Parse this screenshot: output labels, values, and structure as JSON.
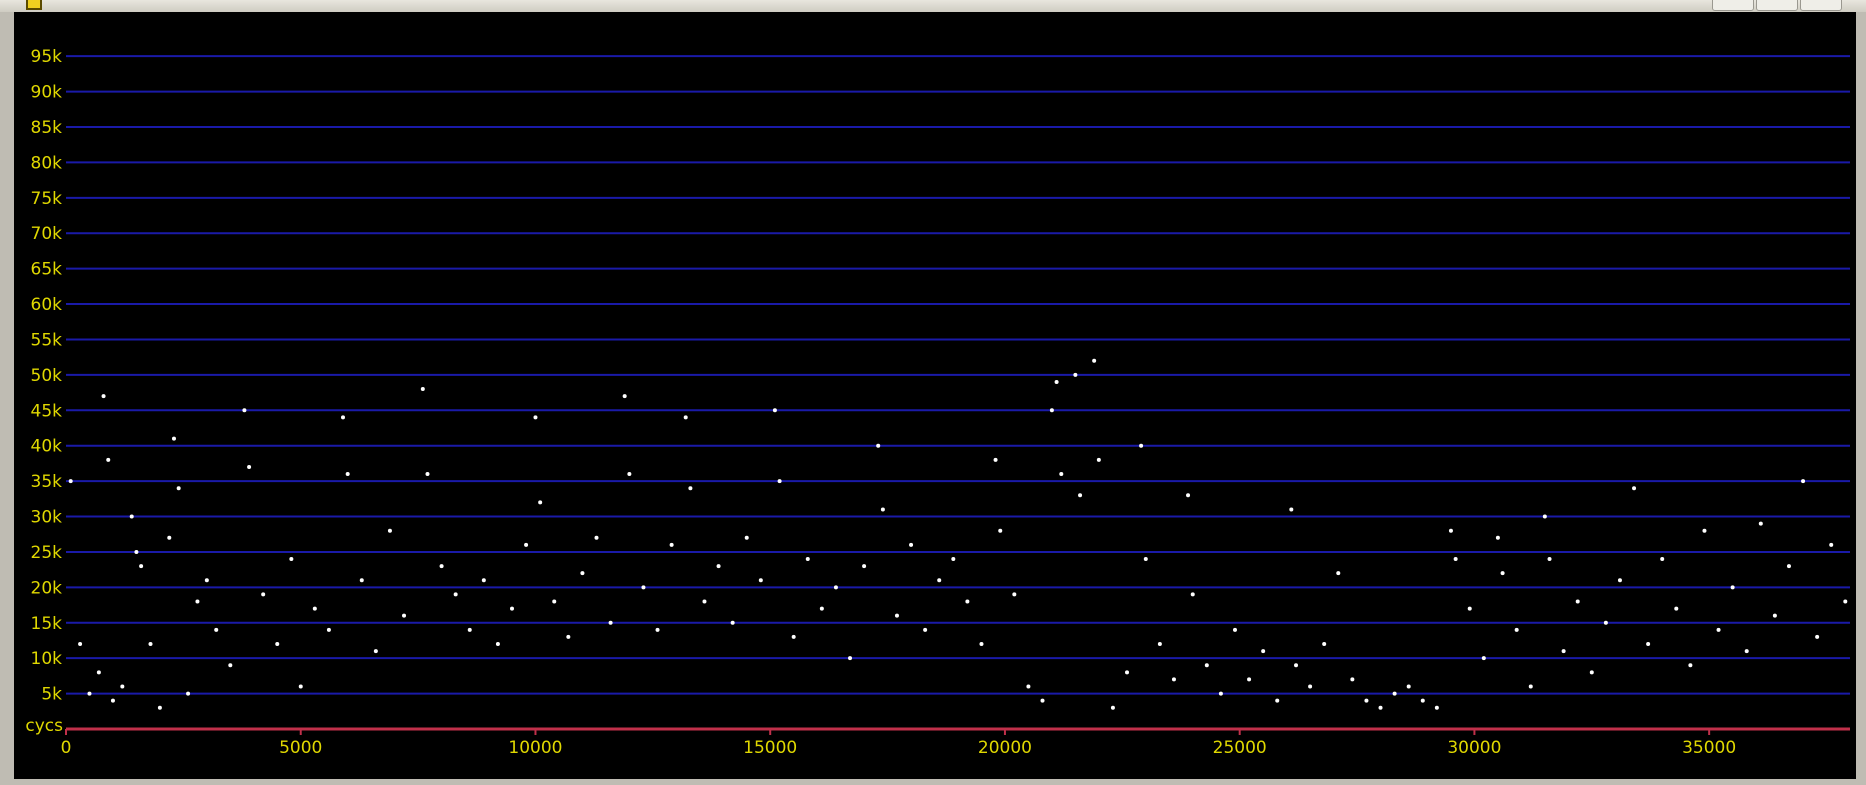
{
  "window": {
    "title": "",
    "colors": {
      "background": "#000000",
      "grid": "#1a1aa8",
      "axis": "#c0304a",
      "tick_text": "#e0d800",
      "points": "#ffffff"
    }
  },
  "chart_data": {
    "type": "scatter",
    "title": "",
    "xlabel": "",
    "ylabel": "cycs",
    "xlim": [
      0,
      38000
    ],
    "ylim": [
      0,
      97000
    ],
    "grid": true,
    "legend": "none",
    "x_ticks": [
      0,
      5000,
      10000,
      15000,
      20000,
      25000,
      30000,
      35000
    ],
    "x_tick_labels": [
      "0",
      "5000",
      "10000",
      "15000",
      "20000",
      "25000",
      "30000",
      "35000"
    ],
    "y_ticks": [
      5000,
      10000,
      15000,
      20000,
      25000,
      30000,
      35000,
      40000,
      45000,
      50000,
      55000,
      60000,
      65000,
      70000,
      75000,
      80000,
      85000,
      90000,
      95000
    ],
    "y_tick_labels": [
      "5k",
      "10k",
      "15k",
      "20k",
      "25k",
      "30k",
      "35k",
      "40k",
      "45k",
      "50k",
      "55k",
      "60k",
      "65k",
      "70k",
      "75k",
      "80k",
      "85k",
      "90k",
      "95k"
    ],
    "series": [
      {
        "values_note": "",
        "points": [
          [
            100,
            35000
          ],
          [
            300,
            12000
          ],
          [
            500,
            5000
          ],
          [
            700,
            8000
          ],
          [
            800,
            47000
          ],
          [
            900,
            38000
          ],
          [
            1000,
            4000
          ],
          [
            1200,
            6000
          ],
          [
            1400,
            30000
          ],
          [
            1500,
            25000
          ],
          [
            1600,
            23000
          ],
          [
            1800,
            12000
          ],
          [
            2000,
            3000
          ],
          [
            2200,
            27000
          ],
          [
            2300,
            41000
          ],
          [
            2400,
            34000
          ],
          [
            2600,
            5000
          ],
          [
            2800,
            18000
          ],
          [
            3000,
            21000
          ],
          [
            3200,
            14000
          ],
          [
            3500,
            9000
          ],
          [
            3800,
            45000
          ],
          [
            3900,
            37000
          ],
          [
            4200,
            19000
          ],
          [
            4500,
            12000
          ],
          [
            4800,
            24000
          ],
          [
            5000,
            6000
          ],
          [
            5300,
            17000
          ],
          [
            5600,
            14000
          ],
          [
            5900,
            44000
          ],
          [
            6000,
            36000
          ],
          [
            6300,
            21000
          ],
          [
            6600,
            11000
          ],
          [
            6900,
            28000
          ],
          [
            7200,
            16000
          ],
          [
            7600,
            48000
          ],
          [
            7700,
            36000
          ],
          [
            8000,
            23000
          ],
          [
            8300,
            19000
          ],
          [
            8600,
            14000
          ],
          [
            8900,
            21000
          ],
          [
            9200,
            12000
          ],
          [
            9500,
            17000
          ],
          [
            9800,
            26000
          ],
          [
            10000,
            44000
          ],
          [
            10100,
            32000
          ],
          [
            10400,
            18000
          ],
          [
            10700,
            13000
          ],
          [
            11000,
            22000
          ],
          [
            11300,
            27000
          ],
          [
            11600,
            15000
          ],
          [
            11900,
            47000
          ],
          [
            12000,
            36000
          ],
          [
            12300,
            20000
          ],
          [
            12600,
            14000
          ],
          [
            12900,
            26000
          ],
          [
            13200,
            44000
          ],
          [
            13300,
            34000
          ],
          [
            13600,
            18000
          ],
          [
            13900,
            23000
          ],
          [
            14200,
            15000
          ],
          [
            14500,
            27000
          ],
          [
            14800,
            21000
          ],
          [
            15100,
            45000
          ],
          [
            15200,
            35000
          ],
          [
            15500,
            13000
          ],
          [
            15800,
            24000
          ],
          [
            16100,
            17000
          ],
          [
            16400,
            20000
          ],
          [
            16700,
            10000
          ],
          [
            17000,
            23000
          ],
          [
            17300,
            40000
          ],
          [
            17400,
            31000
          ],
          [
            17700,
            16000
          ],
          [
            18000,
            26000
          ],
          [
            18300,
            14000
          ],
          [
            18600,
            21000
          ],
          [
            18900,
            24000
          ],
          [
            19200,
            18000
          ],
          [
            19500,
            12000
          ],
          [
            19800,
            38000
          ],
          [
            19900,
            28000
          ],
          [
            20200,
            19000
          ],
          [
            20500,
            6000
          ],
          [
            20800,
            4000
          ],
          [
            21000,
            45000
          ],
          [
            21100,
            49000
          ],
          [
            21200,
            36000
          ],
          [
            21500,
            50000
          ],
          [
            21600,
            33000
          ],
          [
            21900,
            52000
          ],
          [
            22000,
            38000
          ],
          [
            22300,
            3000
          ],
          [
            22600,
            8000
          ],
          [
            22900,
            40000
          ],
          [
            23000,
            24000
          ],
          [
            23300,
            12000
          ],
          [
            23600,
            7000
          ],
          [
            23900,
            33000
          ],
          [
            24000,
            19000
          ],
          [
            24300,
            9000
          ],
          [
            24600,
            5000
          ],
          [
            24900,
            14000
          ],
          [
            25200,
            7000
          ],
          [
            25500,
            11000
          ],
          [
            25800,
            4000
          ],
          [
            26100,
            31000
          ],
          [
            26200,
            9000
          ],
          [
            26500,
            6000
          ],
          [
            26800,
            12000
          ],
          [
            27100,
            22000
          ],
          [
            27400,
            7000
          ],
          [
            27700,
            4000
          ],
          [
            28000,
            3000
          ],
          [
            28300,
            5000
          ],
          [
            28600,
            6000
          ],
          [
            28900,
            4000
          ],
          [
            29200,
            3000
          ],
          [
            29500,
            28000
          ],
          [
            29600,
            24000
          ],
          [
            29900,
            17000
          ],
          [
            30200,
            10000
          ],
          [
            30500,
            27000
          ],
          [
            30600,
            22000
          ],
          [
            30900,
            14000
          ],
          [
            31200,
            6000
          ],
          [
            31500,
            30000
          ],
          [
            31600,
            24000
          ],
          [
            31900,
            11000
          ],
          [
            32200,
            18000
          ],
          [
            32500,
            8000
          ],
          [
            32800,
            15000
          ],
          [
            33100,
            21000
          ],
          [
            33400,
            34000
          ],
          [
            33700,
            12000
          ],
          [
            34000,
            24000
          ],
          [
            34300,
            17000
          ],
          [
            34600,
            9000
          ],
          [
            34900,
            28000
          ],
          [
            35200,
            14000
          ],
          [
            35500,
            20000
          ],
          [
            35800,
            11000
          ],
          [
            36100,
            29000
          ],
          [
            36400,
            16000
          ],
          [
            36700,
            23000
          ],
          [
            37000,
            35000
          ],
          [
            37300,
            13000
          ],
          [
            37600,
            26000
          ],
          [
            37900,
            18000
          ]
        ]
      }
    ]
  }
}
